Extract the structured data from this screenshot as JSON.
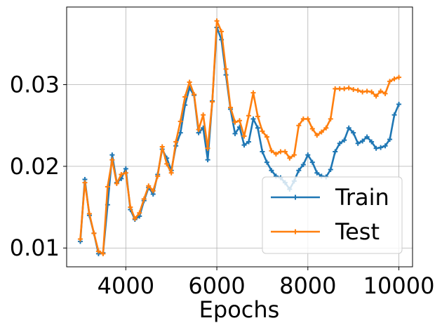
{
  "chart_data": {
    "type": "line",
    "title": "",
    "xlabel": "Epochs",
    "ylabel": "",
    "xlim": [
      2700,
      10300
    ],
    "ylim": [
      0.0077,
      0.0395
    ],
    "xticks": [
      4000,
      6000,
      8000,
      10000
    ],
    "xtick_labels": [
      "4000",
      "6000",
      "8000",
      "10000"
    ],
    "yticks": [
      0.01,
      0.02,
      0.03
    ],
    "ytick_labels": [
      "0.01",
      "0.02",
      "0.03"
    ],
    "grid": true,
    "legend_position": "lower-right",
    "x": [
      3000,
      3100,
      3200,
      3300,
      3400,
      3500,
      3600,
      3700,
      3800,
      3900,
      4000,
      4100,
      4200,
      4300,
      4400,
      4500,
      4600,
      4700,
      4800,
      4900,
      5000,
      5100,
      5200,
      5300,
      5400,
      5500,
      5600,
      5700,
      5800,
      5900,
      6000,
      6100,
      6200,
      6300,
      6400,
      6500,
      6600,
      6700,
      6800,
      6900,
      7000,
      7100,
      7200,
      7300,
      7400,
      7500,
      7600,
      7700,
      7800,
      7900,
      8000,
      8100,
      8200,
      8300,
      8400,
      8500,
      8600,
      8700,
      8800,
      8900,
      9000,
      9100,
      9200,
      9300,
      9400,
      9500,
      9600,
      9700,
      9800,
      9900,
      10000
    ],
    "series": [
      {
        "name": "Train",
        "color": "#1f77b4",
        "values": [
          0.0108,
          0.0184,
          0.014,
          0.0118,
          0.0093,
          0.0094,
          0.0153,
          0.0214,
          0.018,
          0.0185,
          0.0197,
          0.0147,
          0.0135,
          0.0139,
          0.0158,
          0.0174,
          0.0166,
          0.019,
          0.0221,
          0.021,
          0.0195,
          0.0225,
          0.0241,
          0.0275,
          0.0296,
          0.0287,
          0.0241,
          0.0247,
          0.0208,
          0.028,
          0.037,
          0.0355,
          0.0312,
          0.027,
          0.024,
          0.0248,
          0.0226,
          0.023,
          0.0258,
          0.0247,
          0.0218,
          0.0205,
          0.0195,
          0.0188,
          0.0186,
          0.018,
          0.0172,
          0.0182,
          0.0195,
          0.0202,
          0.0214,
          0.0205,
          0.0192,
          0.0188,
          0.0187,
          0.0196,
          0.0218,
          0.0228,
          0.0232,
          0.0247,
          0.0241,
          0.0228,
          0.0231,
          0.0236,
          0.023,
          0.0222,
          0.0223,
          0.0225,
          0.0233,
          0.0263,
          0.0276
        ]
      },
      {
        "name": "Test",
        "color": "#ff7f0e",
        "values": [
          0.0111,
          0.018,
          0.0142,
          0.0118,
          0.0096,
          0.0093,
          0.0175,
          0.0208,
          0.0179,
          0.019,
          0.0192,
          0.015,
          0.0136,
          0.0143,
          0.016,
          0.0176,
          0.017,
          0.0188,
          0.0224,
          0.0203,
          0.0192,
          0.023,
          0.0255,
          0.0285,
          0.0303,
          0.0288,
          0.0245,
          0.0263,
          0.0222,
          0.0279,
          0.0378,
          0.0365,
          0.0319,
          0.0272,
          0.0254,
          0.0256,
          0.0237,
          0.0262,
          0.029,
          0.0261,
          0.0243,
          0.0236,
          0.0219,
          0.0215,
          0.0218,
          0.0218,
          0.021,
          0.0214,
          0.025,
          0.0258,
          0.0258,
          0.0246,
          0.0238,
          0.0242,
          0.0247,
          0.0258,
          0.0295,
          0.0295,
          0.0295,
          0.0296,
          0.0294,
          0.0293,
          0.0291,
          0.0292,
          0.0291,
          0.0286,
          0.0292,
          0.0289,
          0.0304,
          0.0307,
          0.0309
        ]
      }
    ]
  }
}
